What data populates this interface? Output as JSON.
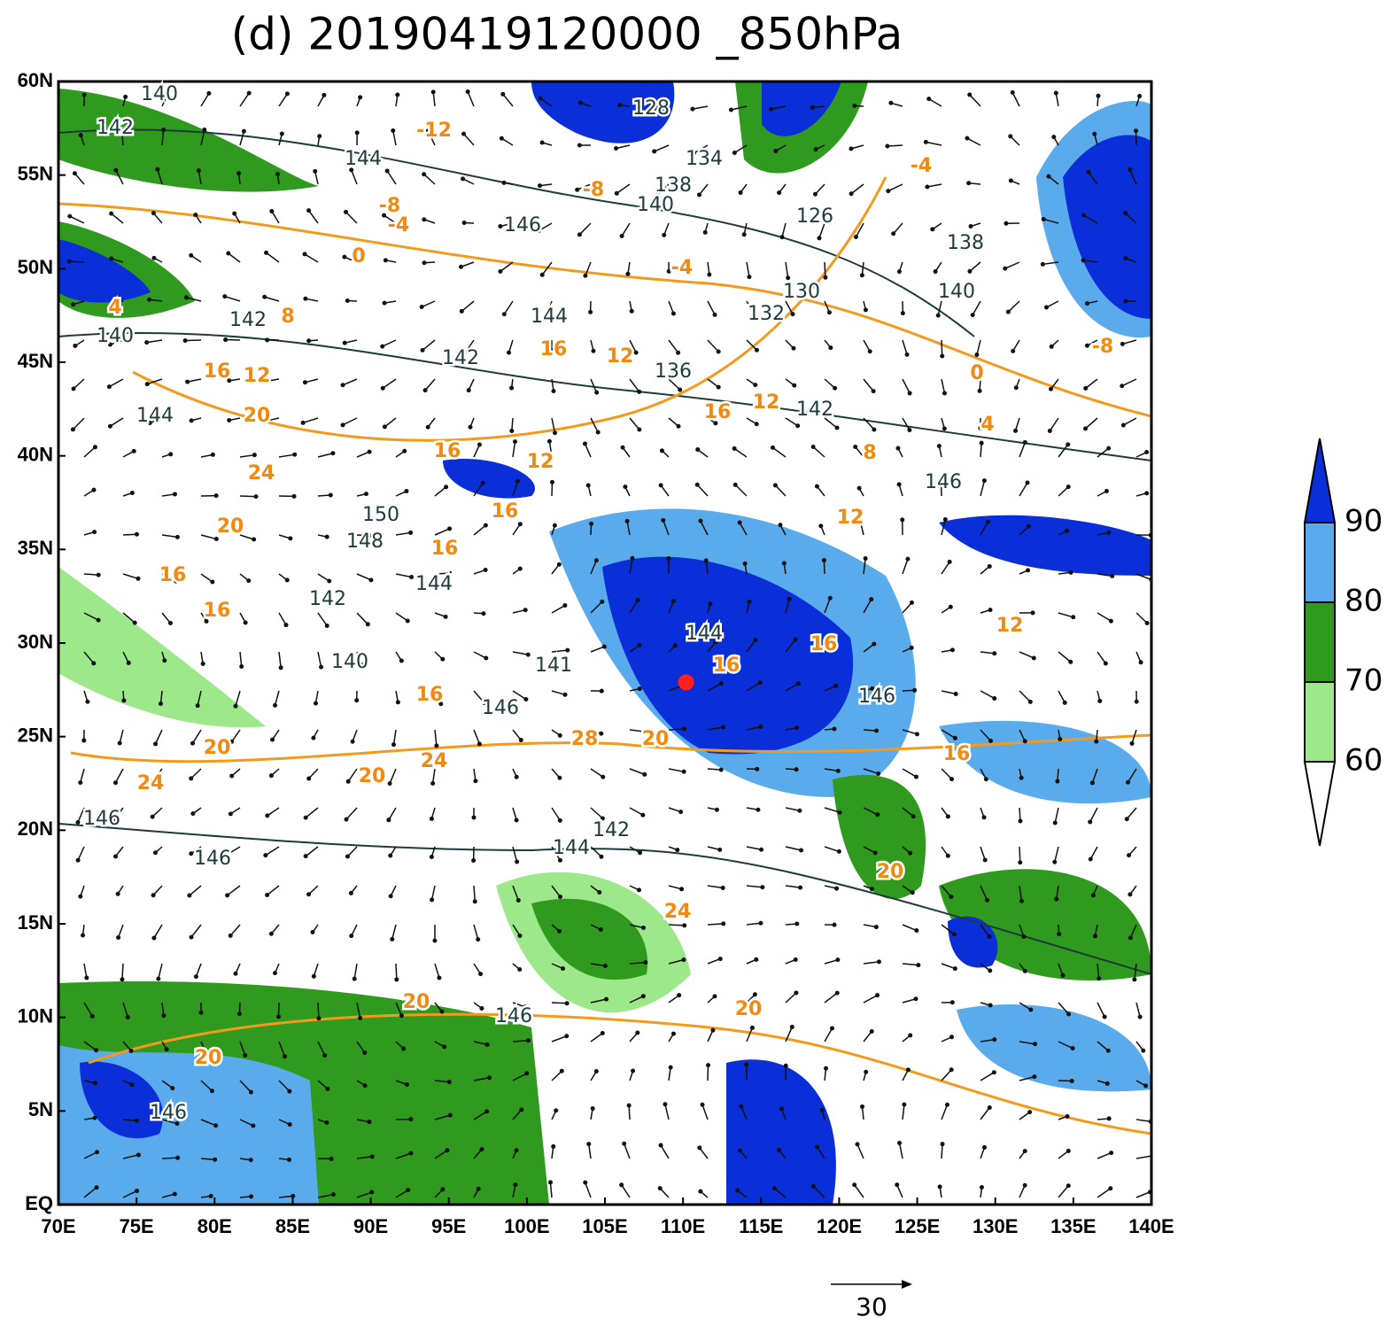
{
  "map": {
    "title": "(d) 20190419120000 _850hPa",
    "lon_range": [
      70,
      140
    ],
    "lat_range": [
      0,
      60
    ],
    "lon_ticks": [
      {
        "value": 70,
        "label": "70E"
      },
      {
        "value": 75,
        "label": "75E"
      },
      {
        "value": 80,
        "label": "80E"
      },
      {
        "value": 85,
        "label": "85E"
      },
      {
        "value": 90,
        "label": "90E"
      },
      {
        "value": 95,
        "label": "95E"
      },
      {
        "value": 100,
        "label": "100E"
      },
      {
        "value": 105,
        "label": "105E"
      },
      {
        "value": 110,
        "label": "110E"
      },
      {
        "value": 115,
        "label": "115E"
      },
      {
        "value": 120,
        "label": "120E"
      },
      {
        "value": 125,
        "label": "125E"
      },
      {
        "value": 130,
        "label": "130E"
      },
      {
        "value": 135,
        "label": "135E"
      },
      {
        "value": 140,
        "label": "140E"
      }
    ],
    "lat_ticks": [
      {
        "value": 0,
        "label": "EQ"
      },
      {
        "value": 5,
        "label": "5N"
      },
      {
        "value": 10,
        "label": "10N"
      },
      {
        "value": 15,
        "label": "15N"
      },
      {
        "value": 20,
        "label": "20N"
      },
      {
        "value": 25,
        "label": "25N"
      },
      {
        "value": 30,
        "label": "30N"
      },
      {
        "value": 35,
        "label": "35N"
      },
      {
        "value": 40,
        "label": "40N"
      },
      {
        "value": 45,
        "label": "45N"
      },
      {
        "value": 50,
        "label": "50N"
      },
      {
        "value": 55,
        "label": "55N"
      },
      {
        "value": 60,
        "label": "60N"
      }
    ],
    "colorbar": {
      "levels": [
        60,
        70,
        80,
        90
      ],
      "colors": [
        "#ffffff",
        "#9ce88a",
        "#2f9a1e",
        "#5aabec",
        "#0a2fd8"
      ]
    },
    "reference_vector": 30,
    "marker": {
      "lon": 110.2,
      "lat": 27.9,
      "color": "#ff2020"
    },
    "geopotential_labels": [
      140,
      142,
      144,
      128,
      134,
      138,
      140,
      146,
      126,
      138,
      140,
      130,
      132,
      142,
      140,
      144,
      136,
      142,
      144,
      146,
      150,
      148,
      144,
      142,
      140,
      144,
      146,
      146,
      142,
      144,
      146,
      146,
      146,
      146,
      142,
      141
    ],
    "temperature_labels": [
      -12,
      -8,
      -4,
      -8,
      -4,
      0,
      -4,
      0,
      -8,
      8,
      4,
      16,
      12,
      16,
      12,
      20,
      16,
      12,
      16,
      12,
      24,
      20,
      16,
      16,
      16,
      16,
      8,
      12,
      12,
      16,
      16,
      16,
      20,
      28,
      20,
      24,
      20,
      24,
      16,
      20,
      24,
      20,
      20,
      20,
      4
    ]
  }
}
